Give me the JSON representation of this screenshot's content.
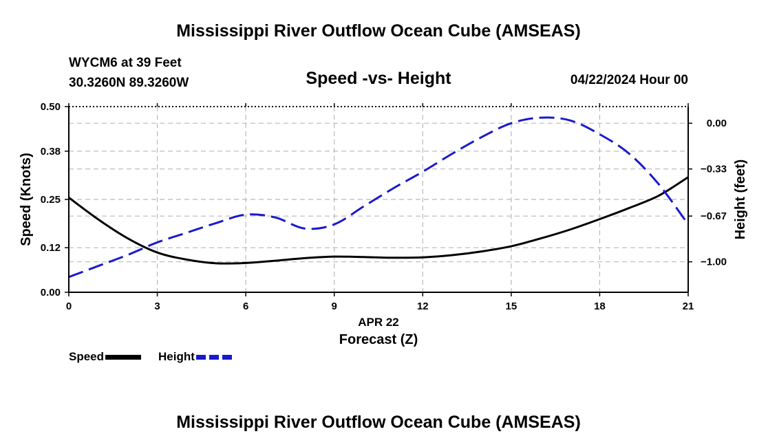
{
  "header": {
    "title": "Mississippi River Outflow Ocean Cube (AMSEAS)",
    "station": "WYCM6 at 39 Feet",
    "coords": "30.3260N  89.3260W",
    "subtitle": "Speed -vs- Height",
    "datetime": "04/22/2024 Hour 00",
    "footer_title": "Mississippi River Outflow Ocean Cube (AMSEAS)"
  },
  "chart_data": {
    "type": "line",
    "title": "Speed -vs- Height",
    "xlabel": "Forecast (Z)",
    "xlabel_date": "APR 22",
    "ylabel_left": "Speed (Knots)",
    "ylabel_right": "Height (feet)",
    "xlim": [
      0,
      21
    ],
    "ylim_left": [
      0,
      0.5
    ],
    "ylim_right": [
      -1.22,
      0.12
    ],
    "x_ticks": [
      "0",
      "3",
      "6",
      "9",
      "12",
      "15",
      "18",
      "21"
    ],
    "y_ticks_left": [
      "0.00",
      "0.12",
      "0.25",
      "0.38",
      "0.50"
    ],
    "y_ticks_right": [
      "0.00",
      "−0.33",
      "−0.67",
      "−1.00"
    ],
    "y_tick_values_right": [
      0,
      -0.33,
      -0.67,
      -1.0
    ],
    "grid": true,
    "series": [
      {
        "name": "Speed",
        "axis": "left",
        "color": "#000000",
        "style": "solid",
        "x": [
          0,
          1,
          2,
          3,
          4,
          5,
          6,
          7,
          8,
          9,
          10,
          11,
          12,
          13,
          14,
          15,
          16,
          17,
          18,
          19,
          20,
          21
        ],
        "values": [
          0.255,
          0.196,
          0.145,
          0.107,
          0.088,
          0.078,
          0.079,
          0.085,
          0.092,
          0.096,
          0.095,
          0.093,
          0.094,
          0.1,
          0.11,
          0.124,
          0.145,
          0.169,
          0.197,
          0.227,
          0.26,
          0.31
        ]
      },
      {
        "name": "Height",
        "axis": "right",
        "color": "#1a1acc",
        "style": "dashed",
        "x": [
          0,
          1,
          2,
          3,
          4,
          5,
          6,
          7,
          8,
          9,
          10,
          11,
          12,
          13,
          14,
          15,
          16,
          17,
          18,
          19,
          20,
          21
        ],
        "values": [
          -1.11,
          -1.03,
          -0.95,
          -0.86,
          -0.79,
          -0.72,
          -0.66,
          -0.68,
          -0.76,
          -0.73,
          -0.6,
          -0.47,
          -0.35,
          -0.22,
          -0.1,
          0.0,
          0.04,
          0.02,
          -0.08,
          -0.22,
          -0.44,
          -0.73
        ]
      }
    ]
  },
  "legend": {
    "speed_label": "Speed",
    "height_label": "Height"
  }
}
